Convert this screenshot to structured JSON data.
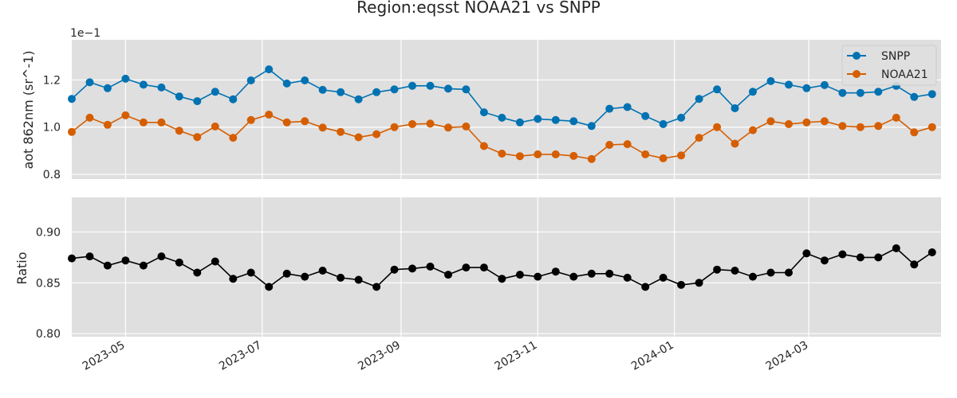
{
  "chart_data": [
    {
      "type": "line",
      "title": "Region:eqsst NOAA21 vs SNPP",
      "ylabel": "aot 862nm (sr^-1)",
      "offset_label": "1e−1",
      "ylim": [
        0.78,
        1.37
      ],
      "yticks": [
        0.8,
        1.0,
        1.2
      ],
      "ytick_labels": [
        "0.8",
        "1.0",
        "1.2"
      ],
      "xlim": [
        "2023-04-07",
        "2024-04-29"
      ],
      "grid": true,
      "legend_position": "top-right",
      "x": [
        "2023-04-07",
        "2023-04-15",
        "2023-04-23",
        "2023-05-01",
        "2023-05-09",
        "2023-05-17",
        "2023-05-25",
        "2023-06-02",
        "2023-06-10",
        "2023-06-18",
        "2023-06-26",
        "2023-07-04",
        "2023-07-12",
        "2023-07-20",
        "2023-07-28",
        "2023-08-05",
        "2023-08-13",
        "2023-08-21",
        "2023-08-29",
        "2023-09-06",
        "2023-09-14",
        "2023-09-22",
        "2023-09-30",
        "2023-10-08",
        "2023-10-16",
        "2023-10-24",
        "2023-11-01",
        "2023-11-09",
        "2023-11-17",
        "2023-11-25",
        "2023-12-03",
        "2023-12-11",
        "2023-12-19",
        "2023-12-27",
        "2024-01-04",
        "2024-01-12",
        "2024-01-20",
        "2024-01-28",
        "2024-02-05",
        "2024-02-13",
        "2024-02-21",
        "2024-02-29",
        "2024-03-08",
        "2024-03-16",
        "2024-03-24",
        "2024-04-01",
        "2024-04-09",
        "2024-04-17",
        "2024-04-25"
      ],
      "series": [
        {
          "name": "SNPP",
          "color": "#0072b2",
          "values": [
            1.12,
            1.19,
            1.165,
            1.205,
            1.18,
            1.168,
            1.13,
            1.11,
            1.15,
            1.118,
            1.198,
            1.245,
            1.185,
            1.198,
            1.158,
            1.148,
            1.118,
            1.148,
            1.16,
            1.175,
            1.175,
            1.163,
            1.16,
            1.063,
            1.04,
            1.02,
            1.035,
            1.03,
            1.025,
            1.005,
            1.078,
            1.085,
            1.047,
            1.013,
            1.04,
            1.12,
            1.16,
            1.08,
            1.15,
            1.195,
            1.18,
            1.165,
            1.178,
            1.145,
            1.145,
            1.15,
            1.175,
            1.128,
            1.14
          ]
        },
        {
          "name": "NOAA21",
          "color": "#d55e00",
          "values": [
            0.98,
            1.04,
            1.01,
            1.05,
            1.02,
            1.02,
            0.985,
            0.958,
            1.003,
            0.955,
            1.03,
            1.053,
            1.02,
            1.025,
            0.998,
            0.98,
            0.957,
            0.97,
            1.0,
            1.013,
            1.015,
            0.998,
            1.003,
            0.92,
            0.888,
            0.877,
            0.885,
            0.885,
            0.878,
            0.865,
            0.925,
            0.928,
            0.885,
            0.868,
            0.88,
            0.955,
            1.0,
            0.93,
            0.987,
            1.025,
            1.013,
            1.02,
            1.025,
            1.005,
            1.0,
            1.005,
            1.04,
            0.978,
            1.0
          ]
        }
      ]
    },
    {
      "type": "line",
      "title": "",
      "ylabel": "Ratio",
      "ylim": [
        0.797,
        0.934
      ],
      "yticks": [
        0.8,
        0.85,
        0.9
      ],
      "ytick_labels": [
        "0.80",
        "0.85",
        "0.90"
      ],
      "xlim": [
        "2023-04-07",
        "2024-04-29"
      ],
      "xticks": [
        "2023-05-01",
        "2023-07-01",
        "2023-09-01",
        "2023-11-01",
        "2024-01-01",
        "2024-03-01"
      ],
      "xtick_labels": [
        "2023-05",
        "2023-07",
        "2023-09",
        "2023-11",
        "2024-01",
        "2024-03"
      ],
      "grid": true,
      "series": [
        {
          "name": "",
          "color": "#000000",
          "values": [
            0.874,
            0.876,
            0.867,
            0.872,
            0.867,
            0.876,
            0.87,
            0.86,
            0.871,
            0.854,
            0.86,
            0.846,
            0.859,
            0.856,
            0.862,
            0.855,
            0.853,
            0.846,
            0.863,
            0.864,
            0.866,
            0.858,
            0.865,
            0.865,
            0.854,
            0.858,
            0.856,
            0.861,
            0.856,
            0.859,
            0.859,
            0.855,
            0.846,
            0.855,
            0.848,
            0.85,
            0.863,
            0.862,
            0.856,
            0.86,
            0.86,
            0.879,
            0.872,
            0.878,
            0.875,
            0.875,
            0.884,
            0.868,
            0.88
          ]
        }
      ]
    }
  ]
}
